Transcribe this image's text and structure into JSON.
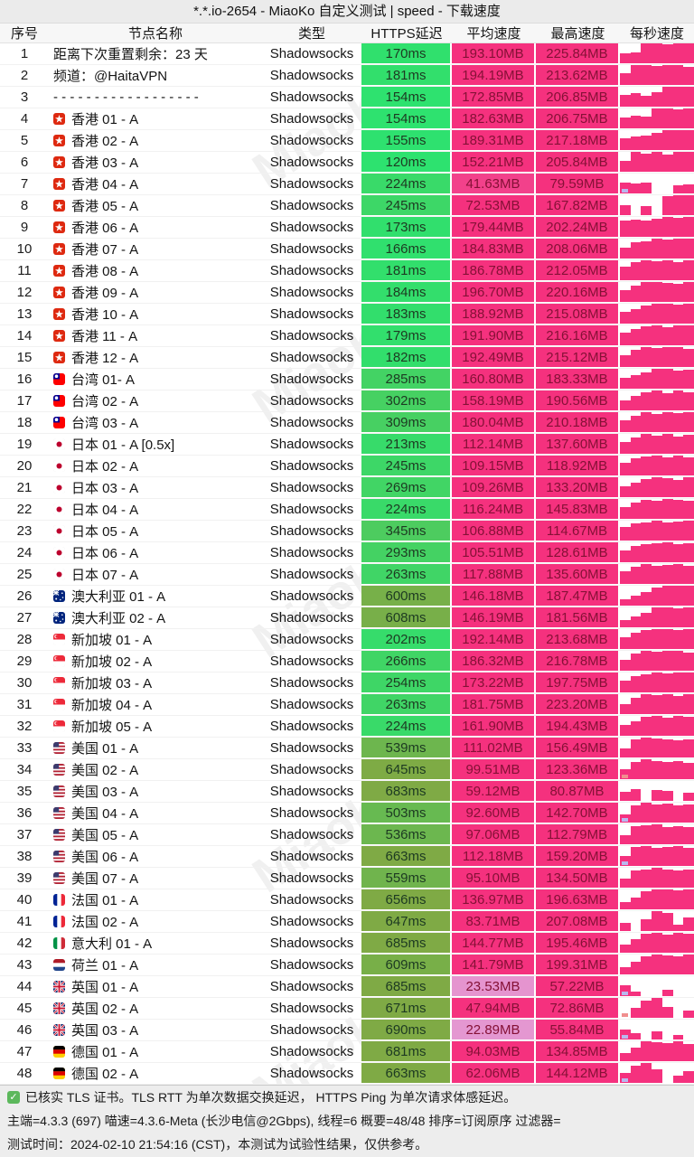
{
  "title": "*.*.io-2654 - MiaoKo 自定义测试 | speed - 下载速度",
  "watermark": "MiaoKo",
  "columns": [
    "序号",
    "节点名称",
    "类型",
    "HTTPS延迟",
    "平均速度",
    "最高速度",
    "每秒速度"
  ],
  "colors": {
    "latency_fast": "#2de26f",
    "latency_slow": "#7faa45",
    "speed_high": "#f5317e",
    "speed_low": "#e2a4dc",
    "spark_bar": "#f5317e",
    "tick_lavender": "#b9b7ee",
    "tick_red": "#f08e8e",
    "check_green": "#5cb85c"
  },
  "rows": [
    {
      "num": "1",
      "flag": null,
      "name": "距离下次重置剩余：23 天",
      "type": "Shadowsocks",
      "latency": "170ms",
      "avg": "193.10MB",
      "max": "225.84MB",
      "spark": [
        0.5,
        0.55,
        1,
        1,
        0.95,
        1,
        1
      ],
      "tick": null
    },
    {
      "num": "2",
      "flag": null,
      "name": "频道：@HaitaVPN",
      "type": "Shadowsocks",
      "latency": "181ms",
      "avg": "194.19MB",
      "max": "213.62MB",
      "spark": [
        0.6,
        1,
        1,
        0.95,
        1,
        1,
        0.9
      ],
      "tick": null
    },
    {
      "num": "3",
      "flag": null,
      "name": "- - - - - - - - - - - - - - - - - -",
      "type": "Shadowsocks",
      "latency": "154ms",
      "avg": "172.85MB",
      "max": "206.85MB",
      "spark": [
        0.6,
        0.7,
        0.55,
        0.75,
        1,
        1,
        1
      ],
      "tick": null
    },
    {
      "num": "4",
      "flag": "hk",
      "name": "香港 01 - A",
      "type": "Shadowsocks",
      "latency": "154ms",
      "avg": "182.63MB",
      "max": "206.75MB",
      "spark": [
        0.55,
        0.65,
        0.6,
        1,
        1,
        0.95,
        1
      ],
      "tick": null
    },
    {
      "num": "5",
      "flag": "hk",
      "name": "香港 02 - A",
      "type": "Shadowsocks",
      "latency": "155ms",
      "avg": "189.31MB",
      "max": "217.18MB",
      "spark": [
        0.6,
        0.7,
        0.75,
        0.85,
        1,
        1,
        1
      ],
      "tick": null
    },
    {
      "num": "6",
      "flag": "hk",
      "name": "香港 03 - A",
      "type": "Shadowsocks",
      "latency": "120ms",
      "avg": "152.21MB",
      "max": "205.84MB",
      "spark": [
        0.55,
        1,
        0.9,
        1,
        0.85,
        1,
        1
      ],
      "tick": null
    },
    {
      "num": "7",
      "flag": "hk",
      "name": "香港 04 - A",
      "type": "Shadowsocks",
      "latency": "224ms",
      "avg": "41.63MB",
      "max": "79.59MB",
      "spark": [
        0.55,
        0.5,
        0.55,
        0,
        0,
        0.4,
        0.45
      ],
      "tick": "lavender"
    },
    {
      "num": "8",
      "flag": "hk",
      "name": "香港 05 - A",
      "type": "Shadowsocks",
      "latency": "245ms",
      "avg": "72.53MB",
      "max": "167.82MB",
      "spark": [
        0.5,
        0,
        0.45,
        0,
        0.95,
        1,
        1
      ],
      "tick": null
    },
    {
      "num": "9",
      "flag": "hk",
      "name": "香港 06 - A",
      "type": "Shadowsocks",
      "latency": "173ms",
      "avg": "179.44MB",
      "max": "202.24MB",
      "spark": [
        0.8,
        0.85,
        0.8,
        0.9,
        1,
        0.95,
        1
      ],
      "tick": null
    },
    {
      "num": "10",
      "flag": "hk",
      "name": "香港 07 - A",
      "type": "Shadowsocks",
      "latency": "166ms",
      "avg": "184.83MB",
      "max": "208.06MB",
      "spark": [
        0.55,
        0.8,
        0.85,
        1,
        0.95,
        1,
        1
      ],
      "tick": null
    },
    {
      "num": "11",
      "flag": "hk",
      "name": "香港 08 - A",
      "type": "Shadowsocks",
      "latency": "181ms",
      "avg": "186.78MB",
      "max": "212.05MB",
      "spark": [
        0.7,
        0.9,
        1,
        0.95,
        1,
        0.9,
        1
      ],
      "tick": null
    },
    {
      "num": "12",
      "flag": "hk",
      "name": "香港 09 - A",
      "type": "Shadowsocks",
      "latency": "184ms",
      "avg": "196.70MB",
      "max": "220.16MB",
      "spark": [
        0.6,
        0.8,
        1,
        1,
        0.95,
        0.9,
        1
      ],
      "tick": null
    },
    {
      "num": "13",
      "flag": "hk",
      "name": "香港 10 - A",
      "type": "Shadowsocks",
      "latency": "183ms",
      "avg": "188.92MB",
      "max": "215.08MB",
      "spark": [
        0.6,
        0.75,
        0.9,
        1,
        1,
        0.95,
        1
      ],
      "tick": null
    },
    {
      "num": "14",
      "flag": "hk",
      "name": "香港 11 - A",
      "type": "Shadowsocks",
      "latency": "179ms",
      "avg": "191.90MB",
      "max": "216.16MB",
      "spark": [
        0.65,
        0.8,
        0.95,
        1,
        0.9,
        1,
        1
      ],
      "tick": null
    },
    {
      "num": "15",
      "flag": "hk",
      "name": "香港 12 - A",
      "type": "Shadowsocks",
      "latency": "182ms",
      "avg": "192.49MB",
      "max": "215.12MB",
      "spark": [
        0.6,
        0.85,
        1,
        0.95,
        1,
        1,
        0.9
      ],
      "tick": null
    },
    {
      "num": "16",
      "flag": "tw",
      "name": "台湾 01- A",
      "type": "Shadowsocks",
      "latency": "285ms",
      "avg": "160.80MB",
      "max": "183.33MB",
      "spark": [
        0.55,
        0.7,
        0.8,
        1,
        1,
        0.9,
        0.95
      ],
      "tick": null
    },
    {
      "num": "17",
      "flag": "tw",
      "name": "台湾 02 - A",
      "type": "Shadowsocks",
      "latency": "302ms",
      "avg": "158.19MB",
      "max": "190.56MB",
      "spark": [
        0.5,
        0.75,
        0.9,
        1,
        0.85,
        1,
        0.9
      ],
      "tick": null
    },
    {
      "num": "18",
      "flag": "tw",
      "name": "台湾 03 - A",
      "type": "Shadowsocks",
      "latency": "309ms",
      "avg": "180.04MB",
      "max": "210.18MB",
      "spark": [
        0.6,
        0.8,
        1,
        0.9,
        1,
        0.95,
        1
      ],
      "tick": null
    },
    {
      "num": "19",
      "flag": "jp",
      "name": "日本 01 - A [0.5x]",
      "type": "Shadowsocks",
      "latency": "213ms",
      "avg": "112.14MB",
      "max": "137.60MB",
      "spark": [
        0.6,
        0.8,
        1,
        0.9,
        1,
        0.85,
        0.95
      ],
      "tick": null
    },
    {
      "num": "20",
      "flag": "jp",
      "name": "日本 02 - A",
      "type": "Shadowsocks",
      "latency": "245ms",
      "avg": "109.15MB",
      "max": "118.92MB",
      "spark": [
        0.65,
        0.85,
        0.95,
        1,
        0.9,
        1,
        0.9
      ],
      "tick": null
    },
    {
      "num": "21",
      "flag": "jp",
      "name": "日本 03 - A",
      "type": "Shadowsocks",
      "latency": "269ms",
      "avg": "109.26MB",
      "max": "133.20MB",
      "spark": [
        0.55,
        0.75,
        0.9,
        1,
        0.95,
        0.85,
        1
      ],
      "tick": null
    },
    {
      "num": "22",
      "flag": "jp",
      "name": "日本 04 - A",
      "type": "Shadowsocks",
      "latency": "224ms",
      "avg": "116.24MB",
      "max": "145.83MB",
      "spark": [
        0.6,
        0.8,
        0.95,
        0.9,
        1,
        0.95,
        0.9
      ],
      "tick": null
    },
    {
      "num": "23",
      "flag": "jp",
      "name": "日本 05 - A",
      "type": "Shadowsocks",
      "latency": "345ms",
      "avg": "106.88MB",
      "max": "114.67MB",
      "spark": [
        0.7,
        0.85,
        0.9,
        1,
        0.9,
        0.95,
        1
      ],
      "tick": null
    },
    {
      "num": "24",
      "flag": "jp",
      "name": "日本 06 - A",
      "type": "Shadowsocks",
      "latency": "293ms",
      "avg": "105.51MB",
      "max": "128.61MB",
      "spark": [
        0.6,
        0.8,
        0.9,
        0.95,
        1,
        0.9,
        0.95
      ],
      "tick": null
    },
    {
      "num": "25",
      "flag": "jp",
      "name": "日本 07 - A",
      "type": "Shadowsocks",
      "latency": "263ms",
      "avg": "117.88MB",
      "max": "135.60MB",
      "spark": [
        0.65,
        0.85,
        1,
        0.9,
        0.95,
        1,
        0.9
      ],
      "tick": null
    },
    {
      "num": "26",
      "flag": "au",
      "name": "澳大利亚 01 - A",
      "type": "Shadowsocks",
      "latency": "600ms",
      "avg": "146.18MB",
      "max": "187.47MB",
      "spark": [
        0.3,
        0.5,
        0.7,
        0.9,
        1,
        1,
        1
      ],
      "tick": null
    },
    {
      "num": "27",
      "flag": "au",
      "name": "澳大利亚 02 - A",
      "type": "Shadowsocks",
      "latency": "608ms",
      "avg": "146.19MB",
      "max": "181.56MB",
      "spark": [
        0.35,
        0.55,
        0.75,
        1,
        1,
        0.95,
        1
      ],
      "tick": null
    },
    {
      "num": "28",
      "flag": "sg",
      "name": "新加坡 01 - A",
      "type": "Shadowsocks",
      "latency": "202ms",
      "avg": "192.14MB",
      "max": "213.68MB",
      "spark": [
        0.6,
        0.8,
        0.95,
        1,
        1,
        0.95,
        1
      ],
      "tick": null
    },
    {
      "num": "29",
      "flag": "sg",
      "name": "新加坡 02 - A",
      "type": "Shadowsocks",
      "latency": "266ms",
      "avg": "186.32MB",
      "max": "216.78MB",
      "spark": [
        0.55,
        0.85,
        1,
        0.95,
        1,
        1,
        0.9
      ],
      "tick": null
    },
    {
      "num": "30",
      "flag": "sg",
      "name": "新加坡 03 - A",
      "type": "Shadowsocks",
      "latency": "254ms",
      "avg": "173.22MB",
      "max": "197.75MB",
      "spark": [
        0.6,
        0.8,
        0.9,
        1,
        0.95,
        1,
        1
      ],
      "tick": null
    },
    {
      "num": "31",
      "flag": "sg",
      "name": "新加坡 04 - A",
      "type": "Shadowsocks",
      "latency": "263ms",
      "avg": "181.75MB",
      "max": "223.20MB",
      "spark": [
        0.5,
        0.8,
        1,
        0.95,
        1,
        0.9,
        1
      ],
      "tick": null
    },
    {
      "num": "32",
      "flag": "sg",
      "name": "新加坡 05 - A",
      "type": "Shadowsocks",
      "latency": "224ms",
      "avg": "161.90MB",
      "max": "194.43MB",
      "spark": [
        0.55,
        0.75,
        0.95,
        1,
        0.9,
        1,
        0.95
      ],
      "tick": null
    },
    {
      "num": "33",
      "flag": "us",
      "name": "美国 01 - A",
      "type": "Shadowsocks",
      "latency": "539ms",
      "avg": "111.02MB",
      "max": "156.49MB",
      "spark": [
        0.45,
        0.9,
        1,
        0.95,
        0.9,
        0.85,
        0.9
      ],
      "tick": null
    },
    {
      "num": "34",
      "flag": "us",
      "name": "美国 02 - A",
      "type": "Shadowsocks",
      "latency": "645ms",
      "avg": "99.51MB",
      "max": "123.36MB",
      "spark": [
        0.5,
        0.85,
        1,
        0.9,
        0.85,
        0.9,
        0.8
      ],
      "tick": "red"
    },
    {
      "num": "35",
      "flag": "us",
      "name": "美国 03 - A",
      "type": "Shadowsocks",
      "latency": "683ms",
      "avg": "59.12MB",
      "max": "80.87MB",
      "spark": [
        0.45,
        0.6,
        0,
        0.55,
        0.5,
        0,
        0.4
      ],
      "tick": null
    },
    {
      "num": "36",
      "flag": "us",
      "name": "美国 04 - A",
      "type": "Shadowsocks",
      "latency": "503ms",
      "avg": "92.60MB",
      "max": "142.70MB",
      "spark": [
        0.4,
        0.85,
        1,
        0.9,
        0.95,
        0.85,
        0.9
      ],
      "tick": "lavender"
    },
    {
      "num": "37",
      "flag": "us",
      "name": "美国 05 - A",
      "type": "Shadowsocks",
      "latency": "536ms",
      "avg": "97.06MB",
      "max": "112.79MB",
      "spark": [
        0.45,
        0.9,
        0.95,
        1,
        0.85,
        0.9,
        0.85
      ],
      "tick": null
    },
    {
      "num": "38",
      "flag": "us",
      "name": "美国 06 - A",
      "type": "Shadowsocks",
      "latency": "663ms",
      "avg": "112.18MB",
      "max": "159.20MB",
      "spark": [
        0.5,
        0.95,
        1,
        0.9,
        0.95,
        1,
        0.9
      ],
      "tick": "lavender"
    },
    {
      "num": "39",
      "flag": "us",
      "name": "美国 07 - A",
      "type": "Shadowsocks",
      "latency": "559ms",
      "avg": "95.10MB",
      "max": "134.50MB",
      "spark": [
        0.45,
        0.85,
        0.9,
        1,
        0.9,
        0.85,
        0.9
      ],
      "tick": null
    },
    {
      "num": "40",
      "flag": "fr",
      "name": "法国 01 - A",
      "type": "Shadowsocks",
      "latency": "656ms",
      "avg": "136.97MB",
      "max": "196.63MB",
      "spark": [
        0.35,
        0.6,
        0.9,
        1,
        1,
        0.95,
        1
      ],
      "tick": null
    },
    {
      "num": "41",
      "flag": "fr",
      "name": "法国 02 - A",
      "type": "Shadowsocks",
      "latency": "647ms",
      "avg": "83.71MB",
      "max": "207.08MB",
      "spark": [
        0.4,
        0,
        0.6,
        1,
        0.9,
        0.3,
        0.7
      ],
      "tick": null
    },
    {
      "num": "42",
      "flag": "it",
      "name": "意大利 01 - A",
      "type": "Shadowsocks",
      "latency": "685ms",
      "avg": "144.77MB",
      "max": "195.46MB",
      "spark": [
        0.4,
        0.7,
        0.95,
        1,
        0.9,
        1,
        0.95
      ],
      "tick": null
    },
    {
      "num": "43",
      "flag": "nl",
      "name": "荷兰 01 - A",
      "type": "Shadowsocks",
      "latency": "609ms",
      "avg": "141.79MB",
      "max": "199.31MB",
      "spark": [
        0.35,
        0.65,
        0.9,
        1,
        0.95,
        0.9,
        1
      ],
      "tick": null
    },
    {
      "num": "44",
      "flag": "gb",
      "name": "英国 01 - A",
      "type": "Shadowsocks",
      "latency": "685ms",
      "avg": "23.53MB",
      "max": "57.22MB",
      "spark": [
        0.55,
        0.25,
        0,
        0,
        0.3,
        0,
        0
      ],
      "tick": "lavender"
    },
    {
      "num": "45",
      "flag": "gb",
      "name": "英国 02 - A",
      "type": "Shadowsocks",
      "latency": "671ms",
      "avg": "47.94MB",
      "max": "72.86MB",
      "spark": [
        0,
        0.5,
        0.85,
        1,
        0.55,
        0,
        0.35
      ],
      "tick": "red"
    },
    {
      "num": "46",
      "flag": "gb",
      "name": "英国 03 - A",
      "type": "Shadowsocks",
      "latency": "690ms",
      "avg": "22.89MB",
      "max": "55.84MB",
      "spark": [
        0.5,
        0.3,
        0,
        0.4,
        0,
        0.25,
        0
      ],
      "tick": "lavender"
    },
    {
      "num": "47",
      "flag": "de",
      "name": "德国 01 - A",
      "type": "Shadowsocks",
      "latency": "681ms",
      "avg": "94.03MB",
      "max": "134.85MB",
      "spark": [
        0.4,
        0.7,
        1,
        0.95,
        0.9,
        1,
        0.85
      ],
      "tick": null
    },
    {
      "num": "48",
      "flag": "de",
      "name": "德国 02 - A",
      "type": "Shadowsocks",
      "latency": "663ms",
      "avg": "62.06MB",
      "max": "144.12MB",
      "spark": [
        0.5,
        0.85,
        1,
        0.7,
        0,
        0.35,
        0.6
      ],
      "tick": "lavender"
    }
  ],
  "footer": {
    "verified": "已核实 TLS 证书。TLS RTT 为单次数据交换延迟， HTTPS Ping 为单次请求体感延迟。",
    "meta": "主端=4.3.3 (697) 喵速=4.3.6-Meta (长沙电信@2Gbps), 线程=6 概要=48/48 排序=订阅原序 过滤器=",
    "time": "测试时间：2024-02-10 21:54:16 (CST)，本测试为试验性结果，仅供参考。"
  }
}
